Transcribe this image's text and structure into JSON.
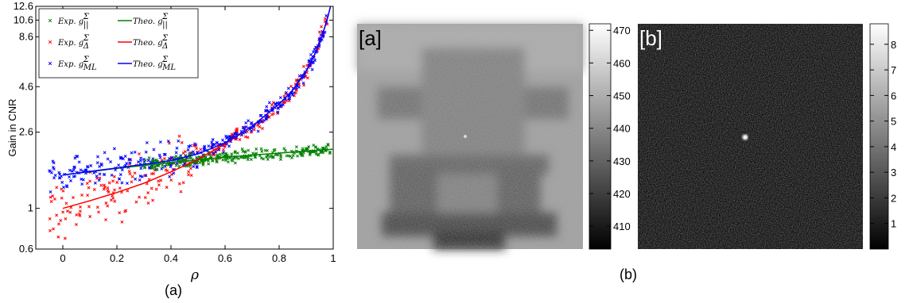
{
  "figure": {
    "caption_a": "(a)",
    "caption_b": "(b)"
  },
  "chart_data": [
    {
      "type": "scatter",
      "xlabel": "ρ",
      "ylabel": "Gain in CNR",
      "xlim": [
        -0.1,
        1.0
      ],
      "ylim": [
        0.6,
        12.6
      ],
      "y_scale": "log",
      "x_ticks": [
        "0",
        "0.2",
        "0.4",
        "0.6",
        "0.8",
        "1"
      ],
      "x_tick_values": [
        0,
        0.2,
        0.4,
        0.6,
        0.8,
        1.0
      ],
      "y_ticks": [
        "0.6",
        "1",
        "2.6",
        "4.6",
        "8.6",
        "10.6",
        "12.6"
      ],
      "y_tick_values": [
        0.6,
        1,
        2.6,
        4.6,
        8.6,
        10.6,
        12.6
      ],
      "grid": false,
      "legend_position": "top-left",
      "colors": {
        "parallel": "#008000",
        "delta": "#ff0000",
        "ml": "#0000ff"
      },
      "legend": [
        {
          "label": "Exp. g",
          "sub": "||",
          "marker": "x",
          "color": "#008000"
        },
        {
          "label": "Exp. g",
          "sub": "Δ",
          "marker": "x",
          "color": "#ff0000"
        },
        {
          "label": "Exp. g",
          "sub": "ML",
          "marker": "x",
          "color": "#0000ff"
        },
        {
          "label": "Theo. g",
          "sub": "||",
          "marker": "line",
          "color": "#008000"
        },
        {
          "label": "Theo. g",
          "sub": "Δ",
          "marker": "line",
          "color": "#ff0000"
        },
        {
          "label": "Theo. g",
          "sub": "ML",
          "marker": "line",
          "color": "#0000ff"
        }
      ],
      "legend_sup": "Σ",
      "series": [
        {
          "name": "Theo. g||",
          "color": "#008000",
          "x": [
            0,
            0.2,
            0.4,
            0.6,
            0.8,
            0.9,
            1.0
          ],
          "y": [
            1.52,
            1.65,
            1.78,
            1.9,
            2.0,
            2.05,
            2.1
          ]
        },
        {
          "name": "Theo. gΔ",
          "color": "#ff0000",
          "x": [
            0,
            0.1,
            0.2,
            0.3,
            0.4,
            0.5,
            0.6,
            0.7,
            0.8,
            0.85,
            0.9,
            0.93,
            0.96,
            0.98,
            0.99
          ],
          "y": [
            1.0,
            1.1,
            1.22,
            1.37,
            1.58,
            1.85,
            2.25,
            2.8,
            3.7,
            4.4,
            5.6,
            6.8,
            8.8,
            11.0,
            12.6
          ]
        },
        {
          "name": "Theo. gML",
          "color": "#0000ff",
          "x": [
            0,
            0.2,
            0.4,
            0.5,
            0.6,
            0.7,
            0.8,
            0.85,
            0.9,
            0.93,
            0.96,
            0.98,
            0.99
          ],
          "y": [
            1.52,
            1.66,
            1.82,
            1.98,
            2.27,
            2.8,
            3.7,
            4.4,
            5.6,
            6.8,
            8.8,
            11.0,
            12.6
          ]
        }
      ],
      "scatter_note": "Experimental points scatter around each theoretical curve (green roughly 1.5–2.1 over ρ 0.3–1; red and blue follow the rising curves with spread)"
    },
    {
      "type": "heatmap",
      "panel_label": "[a]",
      "colorbar_ticks": [
        "470",
        "460",
        "450",
        "440",
        "430",
        "420",
        "410"
      ],
      "colorbar_range": [
        403,
        472
      ],
      "colormap": "gray"
    },
    {
      "type": "heatmap",
      "panel_label": "[b]",
      "colorbar_ticks": [
        "8",
        "7",
        "6",
        "5",
        "4",
        "3",
        "2",
        "1"
      ],
      "colorbar_range": [
        0,
        8.8
      ],
      "colormap": "gray"
    }
  ]
}
